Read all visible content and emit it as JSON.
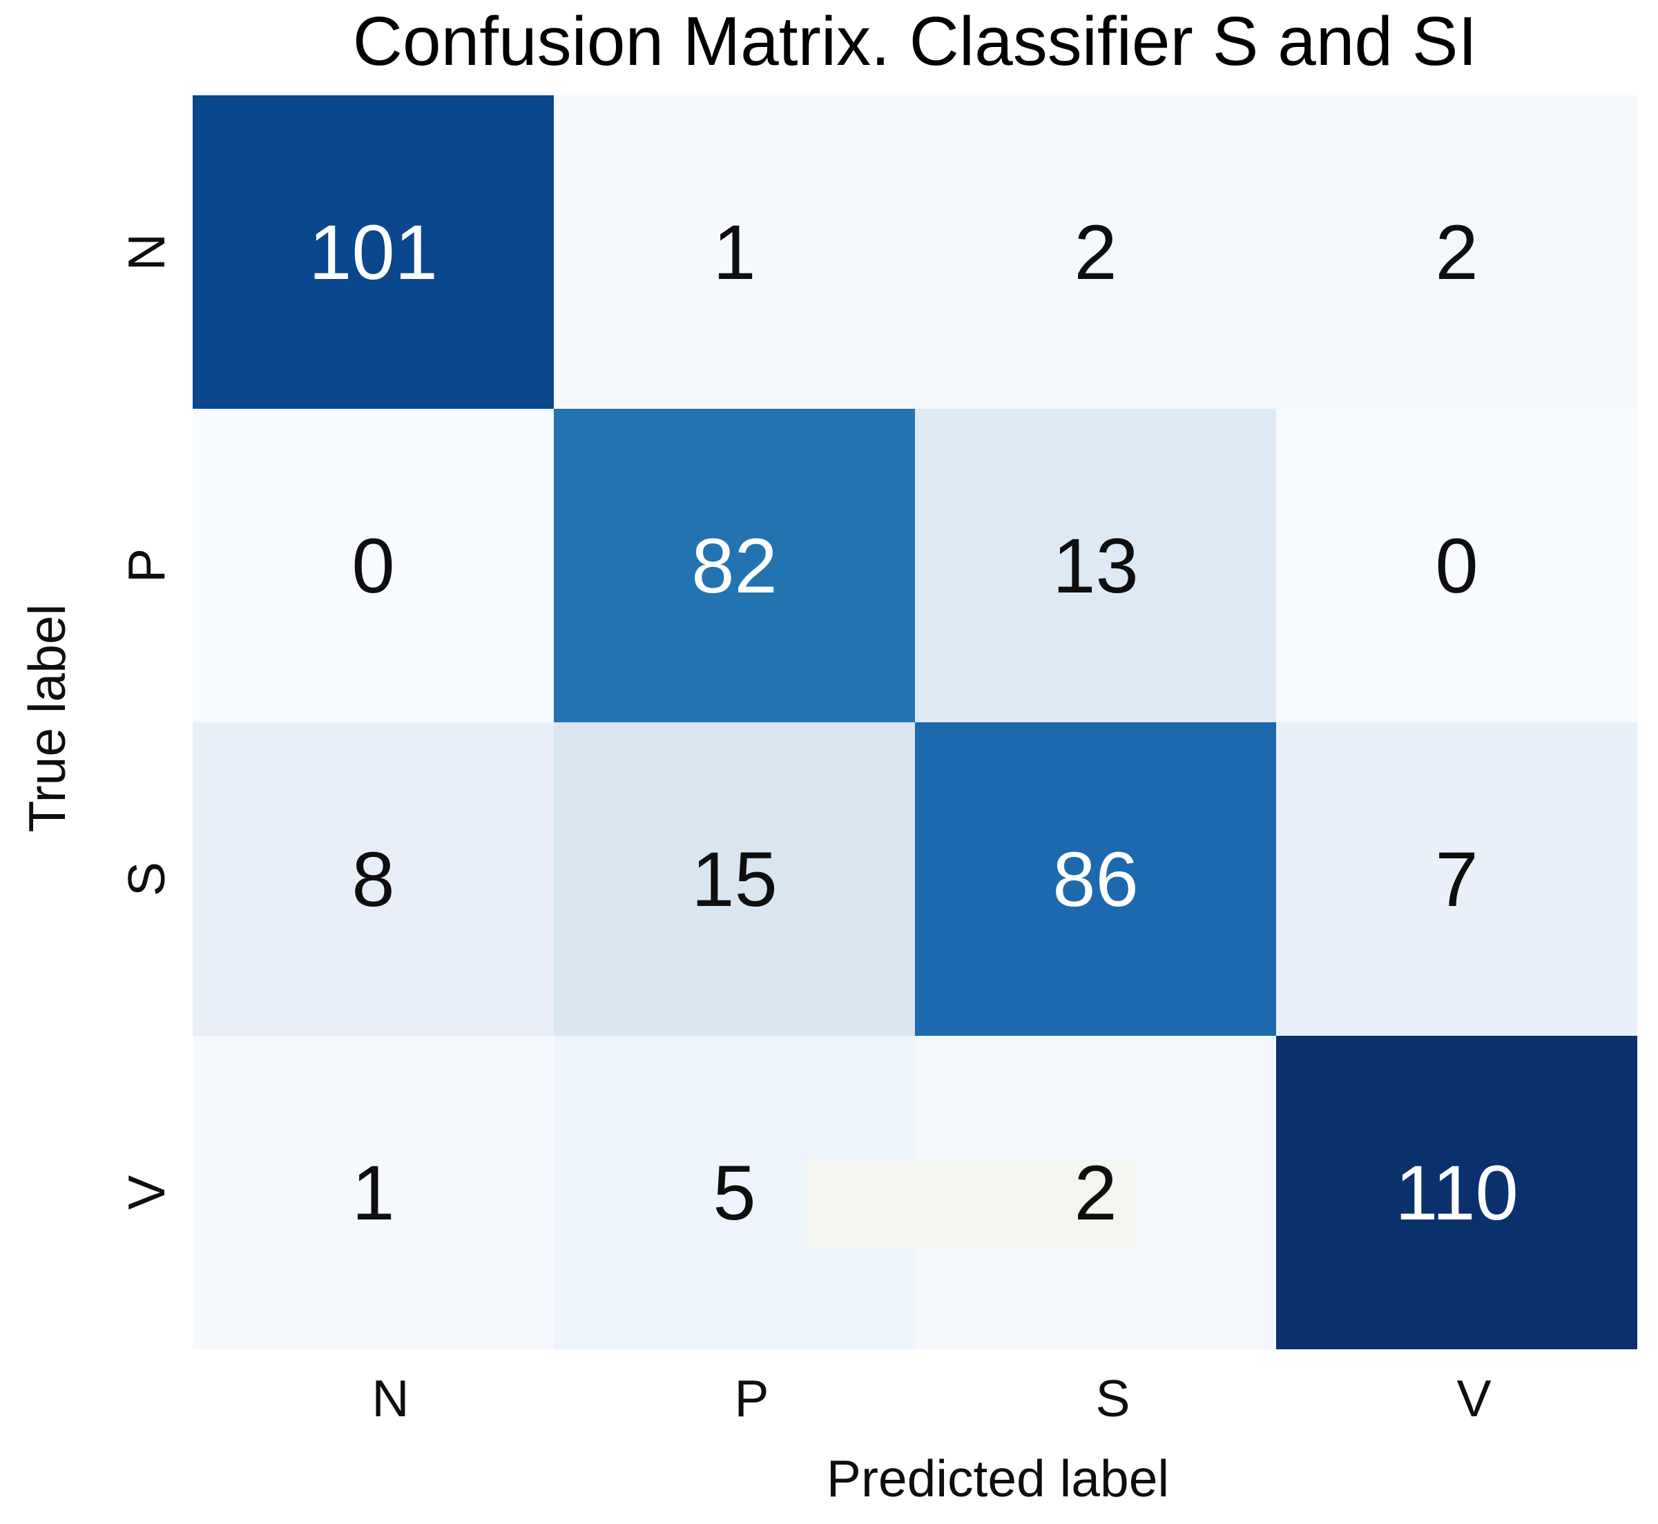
{
  "chart_data": {
    "type": "heatmap",
    "title": "Confusion Matrix. Classifier S and SI",
    "xlabel": "Predicted label",
    "ylabel": "True label",
    "x_categories": [
      "N",
      "P",
      "S",
      "V"
    ],
    "y_categories": [
      "N",
      "P",
      "S",
      "V"
    ],
    "matrix": [
      [
        101,
        1,
        2,
        2
      ],
      [
        0,
        82,
        13,
        0
      ],
      [
        8,
        15,
        86,
        7
      ],
      [
        1,
        5,
        2,
        110
      ]
    ],
    "cell_colors": [
      [
        "#0a478c",
        "#f5f9fd",
        "#f3f8fd",
        "#f3f8fd"
      ],
      [
        "#f7fbff",
        "#2273b0",
        "#dde9f5",
        "#f7fbff"
      ],
      [
        "#e9eff9",
        "#d9e6f2",
        "#1c69ae",
        "#eaf0f9"
      ],
      [
        "#f5f9fd",
        "#eef4fb",
        "#f3f8fd",
        "#0b316c"
      ]
    ],
    "white_text_cells": [
      101,
      82,
      86,
      110
    ],
    "dark_text_color": "#0e0e0e",
    "light_text_color": "#ffffff",
    "colormap": "Blues",
    "value_range": [
      0,
      110
    ],
    "legend": "none",
    "grid": "off",
    "background_color": "#ffffff",
    "artifact_patch_color": "#f2f5f0"
  }
}
